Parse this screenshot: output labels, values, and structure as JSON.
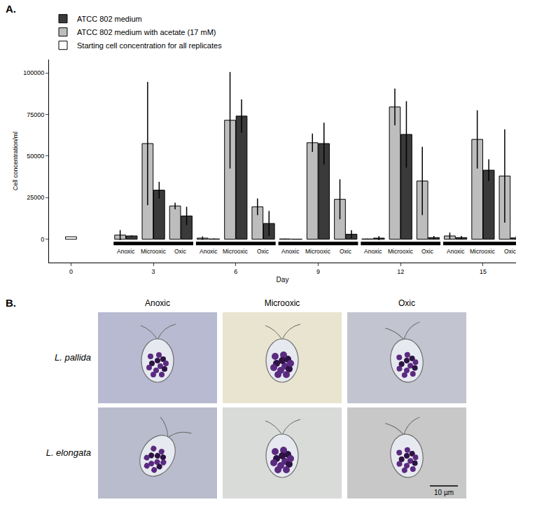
{
  "chart_data": {
    "type": "bar",
    "panel": "A.",
    "x_label": "Day",
    "y_label": "Cell concentration/ml",
    "xlim": [
      -0.8,
      16.2
    ],
    "xticks": [
      0,
      3,
      6,
      9,
      12,
      15
    ],
    "ylim": [
      -14000,
      108000
    ],
    "yticks": [
      0,
      25000,
      50000,
      75000,
      100000
    ],
    "grid": false,
    "legend": "top left",
    "groups": [
      "Anoxic",
      "Microoxic",
      "Oxic"
    ],
    "series": [
      {
        "name": "ATCC 802 medium",
        "color": "#3a3a3a",
        "days": [
          3,
          6,
          9,
          12,
          15
        ],
        "values": [
          [
            2000,
            29500,
            14000
          ],
          [
            200,
            74000,
            9500
          ],
          [
            100,
            57500,
            3000
          ],
          [
            700,
            63000,
            1000
          ],
          [
            1000,
            41500,
            800
          ]
        ],
        "errors": [
          [
            300,
            5000,
            5500
          ],
          [
            300,
            10000,
            7500
          ],
          [
            200,
            12500,
            2500
          ],
          [
            1200,
            20000,
            1000
          ],
          [
            1000,
            6500,
            1200
          ]
        ]
      },
      {
        "name": "ATCC 802 medium with acetate (17 mM)",
        "color": "#bdbdbd",
        "days": [
          3,
          6,
          9,
          12,
          15
        ],
        "values": [
          [
            2500,
            57500,
            20000
          ],
          [
            700,
            71500,
            19500
          ],
          [
            200,
            58000,
            24000
          ],
          [
            200,
            79500,
            35000
          ],
          [
            2000,
            60000,
            38000
          ]
        ],
        "errors": [
          [
            3000,
            37000,
            2000
          ],
          [
            1000,
            29000,
            5000
          ],
          [
            200,
            5500,
            12000
          ],
          [
            200,
            11000,
            20500
          ],
          [
            2000,
            17500,
            28000
          ]
        ]
      },
      {
        "name": "Starting cell concentration for all replicates",
        "color": "#ffffff",
        "days": [
          0
        ],
        "values": [
          1500
        ]
      }
    ]
  },
  "panel_b": {
    "panel": "B.",
    "columns": [
      "Anoxic",
      "Microoxic",
      "Oxic"
    ],
    "rows": [
      "L. pallida",
      "L. elongata"
    ],
    "scale_bar": "10 µm"
  }
}
